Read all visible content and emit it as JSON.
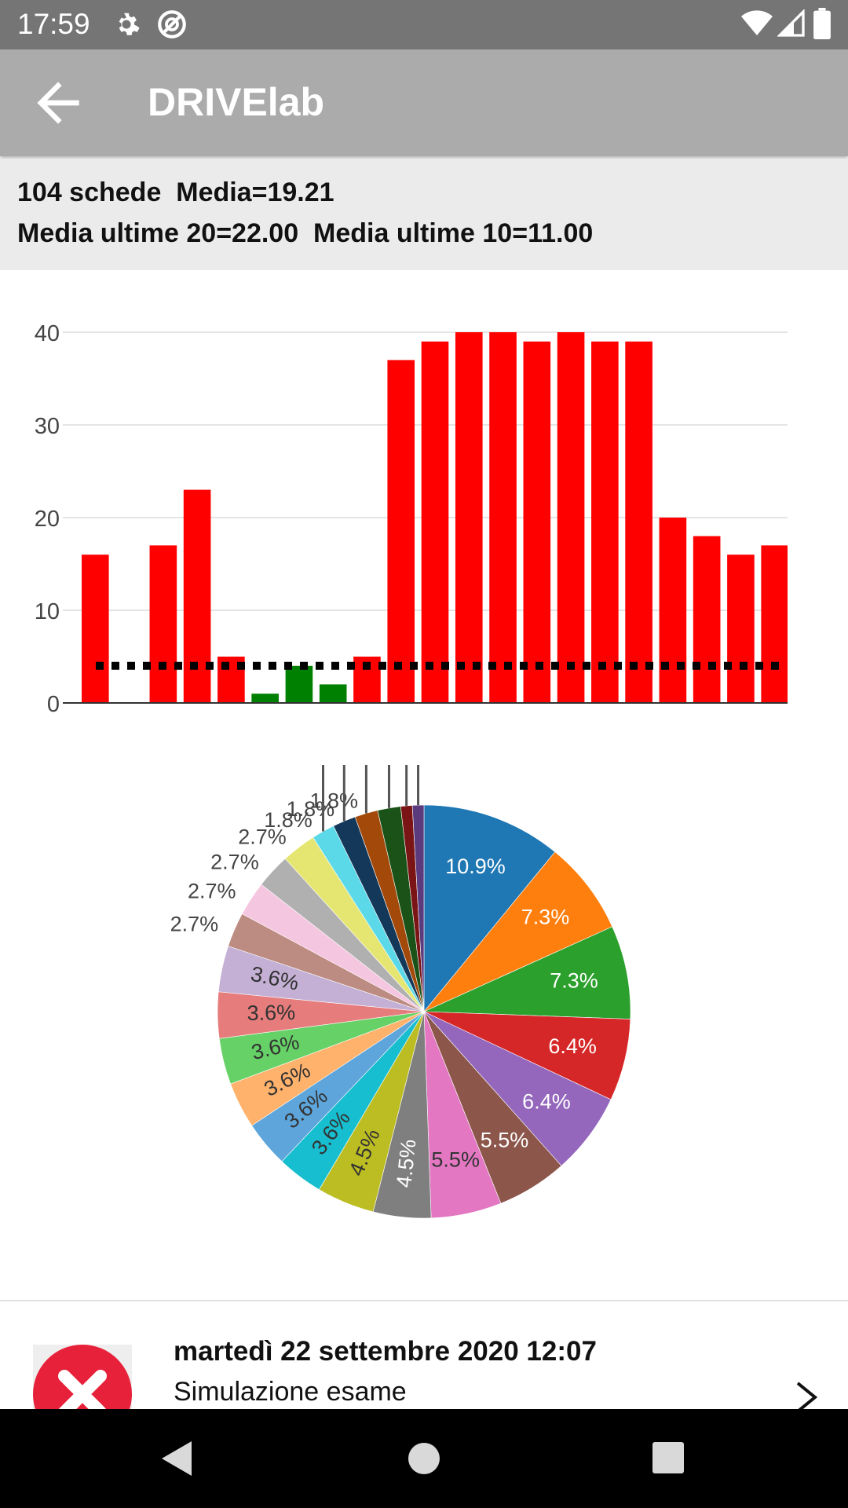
{
  "status_bar": {
    "time": "17:59",
    "icons": [
      "gear-icon",
      "no-sync-icon",
      "wifi-icon",
      "signal-icon",
      "battery-icon"
    ]
  },
  "app_bar": {
    "title": "DRIVElab",
    "back_icon": "arrow-left-icon"
  },
  "summary": {
    "line1": "104 schede  Media=19.21",
    "line2": "Media ultime 20=22.00  Media ultime 10=11.00"
  },
  "chart_data": [
    {
      "type": "bar",
      "ylim": [
        0,
        40
      ],
      "yticks": [
        "0",
        "10",
        "20",
        "30",
        "40"
      ],
      "grid": true,
      "values": [
        16,
        0,
        17,
        23,
        5,
        1,
        4,
        2,
        5,
        37,
        39,
        40,
        40,
        39,
        40,
        39,
        39,
        20,
        18,
        16,
        17
      ],
      "colors": [
        "#ff0000",
        "#ff0000",
        "#ff0000",
        "#ff0000",
        "#ff0000",
        "#008000",
        "#008000",
        "#008000",
        "#ff0000",
        "#ff0000",
        "#ff0000",
        "#ff0000",
        "#ff0000",
        "#ff0000",
        "#ff0000",
        "#ff0000",
        "#ff0000",
        "#ff0000",
        "#ff0000",
        "#ff0000",
        "#ff0000"
      ],
      "threshold": 4,
      "threshold_style": "dotted black line"
    },
    {
      "type": "pie",
      "slices": [
        {
          "label": "10.9%",
          "value": 10.9,
          "color": "#1f77b4"
        },
        {
          "label": "7.3%",
          "value": 7.3,
          "color": "#ff7f0e"
        },
        {
          "label": "7.3%",
          "value": 7.3,
          "color": "#2ca02c"
        },
        {
          "label": "6.4%",
          "value": 6.4,
          "color": "#d62728"
        },
        {
          "label": "6.4%",
          "value": 6.4,
          "color": "#9467bd"
        },
        {
          "label": "5.5%",
          "value": 5.5,
          "color": "#8c564b"
        },
        {
          "label": "5.5%",
          "value": 5.5,
          "color": "#e377c2"
        },
        {
          "label": "4.5%",
          "value": 4.5,
          "color": "#7f7f7f"
        },
        {
          "label": "4.5%",
          "value": 4.5,
          "color": "#bcbd22"
        },
        {
          "label": "3.6%",
          "value": 3.6,
          "color": "#17becf"
        },
        {
          "label": "3.6%",
          "value": 3.6,
          "color": "#5da5da"
        },
        {
          "label": "3.6%",
          "value": 3.6,
          "color": "#ffb26b"
        },
        {
          "label": "3.6%",
          "value": 3.6,
          "color": "#66d166"
        },
        {
          "label": "3.6%",
          "value": 3.6,
          "color": "#e67c7c"
        },
        {
          "label": "3.6%",
          "value": 3.6,
          "color": "#c5b0d5"
        },
        {
          "label": "2.7%",
          "value": 2.7,
          "color": "#bc8b81"
        },
        {
          "label": "2.7%",
          "value": 2.7,
          "color": "#f5c6e0"
        },
        {
          "label": "2.7%",
          "value": 2.7,
          "color": "#b0b0b0"
        },
        {
          "label": "2.7%",
          "value": 2.7,
          "color": "#e5e572"
        },
        {
          "label": "1.8%",
          "value": 1.8,
          "color": "#5bd9e8"
        },
        {
          "label": "1.8%",
          "value": 1.8,
          "color": "#14385a"
        },
        {
          "label": "1.8%",
          "value": 1.8,
          "color": "#a34a0b"
        },
        {
          "label": "",
          "value": 1.8,
          "color": "#1a5218"
        },
        {
          "label": "",
          "value": 0.9,
          "color": "#7b1414"
        },
        {
          "label": "",
          "value": 0.9,
          "color": "#5b3b7e"
        }
      ]
    }
  ],
  "list_item": {
    "date": "martedì 22 settembre 2020 12:07",
    "subtitle": "Simulazione esame",
    "status_icon": "error-x-icon",
    "chevron_icon": "chevron-right-icon"
  },
  "nav_bar": {
    "icons": [
      "back-triangle-icon",
      "home-circle-icon",
      "recents-square-icon"
    ]
  }
}
